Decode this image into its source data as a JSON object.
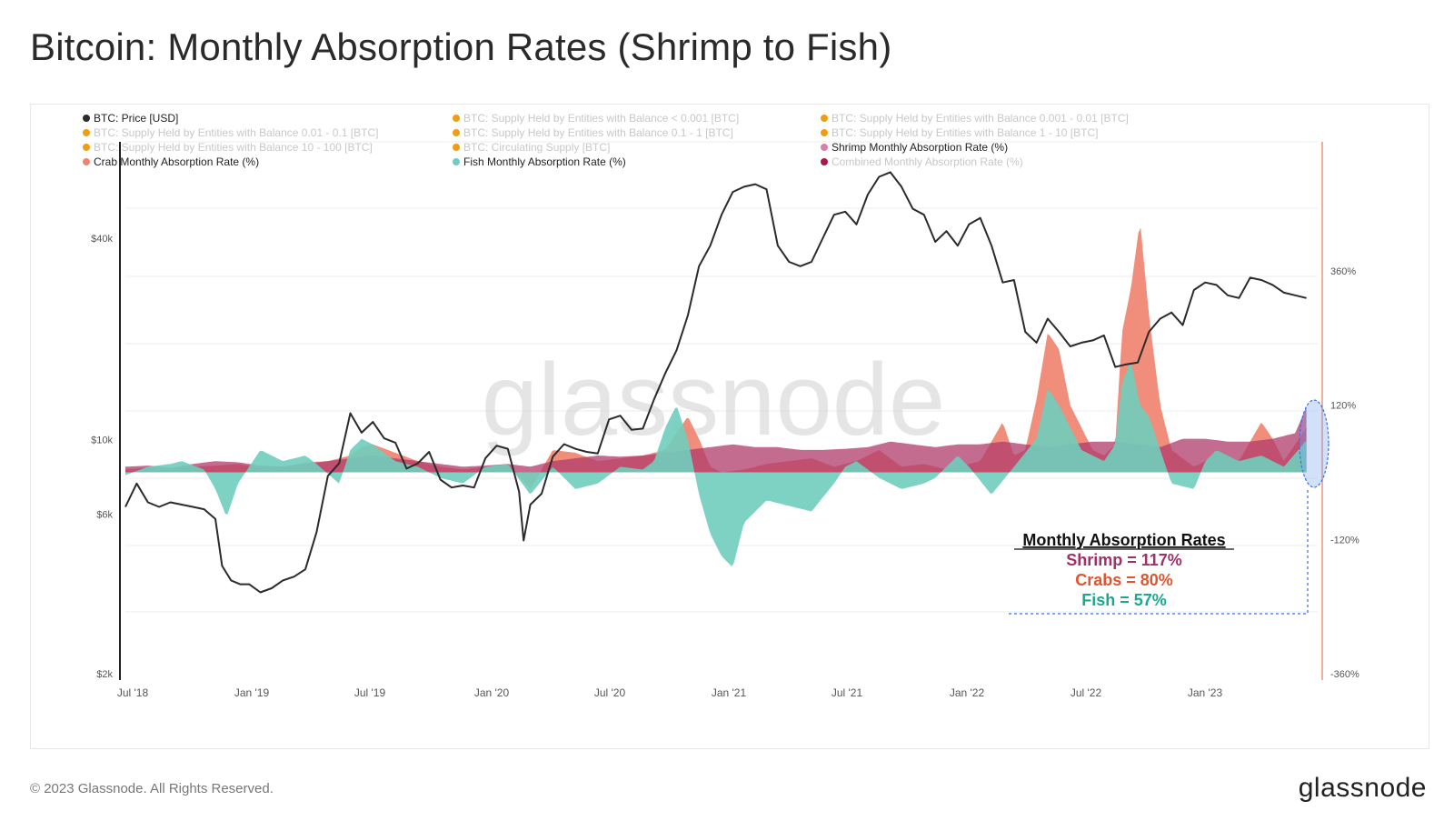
{
  "title": "Bitcoin: Monthly Absorption Rates (Shrimp to Fish)",
  "watermark": "glassnode",
  "footer": {
    "copyright": "© 2023 Glassnode. All Rights Reserved.",
    "logo": "glassnode"
  },
  "colors": {
    "price": "#2b2b2b",
    "shrimp": "#b03a6b",
    "crab": "#f08470",
    "fish": "#6fcdbd",
    "legend_orange": "#f39c12",
    "shrimp_label": "#a0306a",
    "crab_label": "#e05530",
    "fish_label": "#1aa890",
    "right_axis": "#f0907a"
  },
  "legend": [
    {
      "label": "BTC: Price [USD]",
      "color": "#2b2b2b",
      "active": true
    },
    {
      "label": "BTC: Supply Held by Entities with Balance < 0.001 [BTC]",
      "color": "#f39c12",
      "active": false
    },
    {
      "label": "BTC: Supply Held by Entities with Balance 0.001 - 0.01 [BTC]",
      "color": "#f39c12",
      "active": false
    },
    {
      "label": "BTC: Supply Held by Entities with Balance 0.01 - 0.1 [BTC]",
      "color": "#f39c12",
      "active": false
    },
    {
      "label": "BTC: Supply Held by Entities with Balance 0.1 - 1 [BTC]",
      "color": "#f39c12",
      "active": false
    },
    {
      "label": "BTC: Supply Held by Entities with Balance 1 - 10 [BTC]",
      "color": "#f39c12",
      "active": false
    },
    {
      "label": "BTC: Supply Held by Entities with Balance 10 - 100 [BTC]",
      "color": "#f39c12",
      "active": false
    },
    {
      "label": "BTC: Circulating Supply [BTC]",
      "color": "#f39c12",
      "active": false
    },
    {
      "label": "Shrimp Monthly Absorption Rate (%)",
      "color": "#d97fa8",
      "active": true
    },
    {
      "label": "Crab Monthly Absorption Rate (%)",
      "color": "#f08470",
      "active": true
    },
    {
      "label": "Fish Monthly Absorption Rate (%)",
      "color": "#6fcdbd",
      "active": true
    },
    {
      "label": "Combined Monthly Absorption Rate (%)",
      "color": "#a8174e",
      "active": false
    }
  ],
  "annotation": {
    "heading": "Monthly Absorption Rates",
    "shrimp": "Shrimp = 117%",
    "crabs": "Crabs = 80%",
    "fish": "Fish = 57%"
  },
  "chart_data": {
    "type": "area",
    "x_ticks": [
      "Jul '18",
      "Jan '19",
      "Jul '19",
      "Jan '20",
      "Jul '20",
      "Jan '21",
      "Jul '21",
      "Jan '22",
      "Jul '22",
      "Jan '23"
    ],
    "left_axis": {
      "label": "",
      "scale": "log",
      "ticks": [
        "$40k",
        "$10k",
        "$6k",
        "$2k"
      ],
      "tick_values": [
        40000,
        10000,
        6000,
        2000
      ]
    },
    "right_axis": {
      "label": "",
      "ticks": [
        "360%",
        "120%",
        "-120%",
        "-360%"
      ],
      "tick_values": [
        360,
        120,
        -120,
        -360
      ],
      "ylim": [
        -360,
        360
      ]
    },
    "x_range": [
      2018.45,
      2023.75
    ],
    "price_series": {
      "name": "BTC: Price [USD]",
      "x": [
        2018.45,
        2018.5,
        2018.55,
        2018.6,
        2018.65,
        2018.7,
        2018.75,
        2018.8,
        2018.85,
        2018.88,
        2018.92,
        2018.96,
        2019.0,
        2019.05,
        2019.1,
        2019.15,
        2019.2,
        2019.25,
        2019.3,
        2019.35,
        2019.4,
        2019.45,
        2019.5,
        2019.55,
        2019.6,
        2019.65,
        2019.7,
        2019.75,
        2019.8,
        2019.85,
        2019.9,
        2019.95,
        2020.0,
        2020.05,
        2020.1,
        2020.15,
        2020.2,
        2020.22,
        2020.25,
        2020.3,
        2020.35,
        2020.4,
        2020.45,
        2020.5,
        2020.55,
        2020.6,
        2020.65,
        2020.7,
        2020.75,
        2020.8,
        2020.85,
        2020.9,
        2020.95,
        2021.0,
        2021.05,
        2021.1,
        2021.15,
        2021.2,
        2021.25,
        2021.3,
        2021.35,
        2021.4,
        2021.45,
        2021.5,
        2021.55,
        2021.6,
        2021.65,
        2021.7,
        2021.75,
        2021.8,
        2021.85,
        2021.9,
        2021.95,
        2022.0,
        2022.05,
        2022.1,
        2022.15,
        2022.2,
        2022.25,
        2022.3,
        2022.35,
        2022.4,
        2022.45,
        2022.5,
        2022.55,
        2022.6,
        2022.65,
        2022.7,
        2022.75,
        2022.8,
        2022.85,
        2022.9,
        2022.95,
        2023.0,
        2023.05,
        2023.1,
        2023.15,
        2023.2,
        2023.25,
        2023.3,
        2023.35,
        2023.4,
        2023.45,
        2023.5,
        2023.55,
        2023.6,
        2023.65,
        2023.7
      ],
      "values": [
        6300,
        7400,
        6500,
        6300,
        6500,
        6400,
        6300,
        6200,
        5800,
        4200,
        3800,
        3700,
        3700,
        3500,
        3600,
        3800,
        3900,
        4100,
        5300,
        7800,
        8500,
        12000,
        10500,
        11300,
        10100,
        9800,
        8200,
        8500,
        9200,
        7600,
        7200,
        7300,
        7200,
        8800,
        9600,
        9400,
        7000,
        5000,
        6400,
        6900,
        8900,
        9700,
        9400,
        9200,
        9100,
        11500,
        11800,
        10700,
        10800,
        13200,
        15800,
        18500,
        23500,
        33000,
        38000,
        47000,
        55000,
        57000,
        58000,
        56000,
        38000,
        34000,
        33000,
        34000,
        40000,
        47000,
        48000,
        44000,
        54000,
        61000,
        63000,
        57000,
        49000,
        47000,
        39000,
        42000,
        38000,
        44000,
        46000,
        38000,
        29500,
        30000,
        21000,
        19500,
        23000,
        21000,
        19000,
        19500,
        19800,
        20500,
        16500,
        16800,
        17000,
        21000,
        23000,
        24000,
        22000,
        28000,
        29500,
        29000,
        27000,
        26500,
        30500,
        30000,
        29000,
        27500,
        27000,
        26500
      ]
    },
    "series": [
      {
        "name": "Crab Monthly Absorption Rate (%)",
        "x": [
          2018.45,
          2018.55,
          2018.65,
          2018.75,
          2018.85,
          2018.95,
          2019.05,
          2019.15,
          2019.25,
          2019.35,
          2019.45,
          2019.5,
          2019.55,
          2019.65,
          2019.75,
          2019.85,
          2019.95,
          2020.05,
          2020.15,
          2020.25,
          2020.35,
          2020.45,
          2020.55,
          2020.65,
          2020.75,
          2020.85,
          2020.95,
          2021.0,
          2021.05,
          2021.1,
          2021.2,
          2021.3,
          2021.4,
          2021.5,
          2021.6,
          2021.7,
          2021.8,
          2021.9,
          2022.0,
          2022.1,
          2022.15,
          2022.25,
          2022.35,
          2022.4,
          2022.45,
          2022.5,
          2022.55,
          2022.6,
          2022.65,
          2022.75,
          2022.8,
          2022.85,
          2022.88,
          2022.92,
          2022.96,
          2023.0,
          2023.05,
          2023.1,
          2023.2,
          2023.25,
          2023.3,
          2023.4,
          2023.5,
          2023.55,
          2023.6,
          2023.65,
          2023.7
        ],
        "values": [
          5,
          8,
          2,
          10,
          12,
          15,
          8,
          10,
          18,
          20,
          30,
          45,
          50,
          35,
          20,
          10,
          5,
          10,
          15,
          -30,
          40,
          35,
          20,
          25,
          30,
          40,
          100,
          60,
          10,
          0,
          5,
          15,
          20,
          25,
          10,
          20,
          40,
          10,
          15,
          5,
          10,
          20,
          90,
          30,
          40,
          130,
          250,
          220,
          120,
          40,
          30,
          50,
          250,
          330,
          450,
          280,
          120,
          40,
          10,
          20,
          40,
          20,
          90,
          60,
          20,
          50,
          80
        ]
      },
      {
        "name": "Fish Monthly Absorption Rate (%)",
        "x": [
          2018.45,
          2018.55,
          2018.65,
          2018.7,
          2018.8,
          2018.85,
          2018.9,
          2018.95,
          2019.05,
          2019.15,
          2019.25,
          2019.3,
          2019.4,
          2019.45,
          2019.5,
          2019.55,
          2019.65,
          2019.75,
          2019.85,
          2019.95,
          2020.05,
          2020.15,
          2020.25,
          2020.35,
          2020.45,
          2020.55,
          2020.65,
          2020.75,
          2020.8,
          2020.85,
          2020.9,
          2020.95,
          2021.0,
          2021.05,
          2021.1,
          2021.15,
          2021.2,
          2021.3,
          2021.4,
          2021.5,
          2021.6,
          2021.65,
          2021.7,
          2021.8,
          2021.9,
          2022.0,
          2022.05,
          2022.1,
          2022.15,
          2022.2,
          2022.3,
          2022.4,
          2022.5,
          2022.55,
          2022.6,
          2022.7,
          2022.8,
          2022.85,
          2022.88,
          2022.92,
          2022.96,
          2023.0,
          2023.05,
          2023.1,
          2023.2,
          2023.25,
          2023.3,
          2023.4,
          2023.5,
          2023.6,
          2023.7
        ],
        "values": [
          -5,
          10,
          15,
          20,
          5,
          -30,
          -80,
          -20,
          40,
          20,
          30,
          15,
          -20,
          40,
          60,
          50,
          20,
          10,
          -10,
          -20,
          10,
          15,
          -40,
          10,
          -30,
          -20,
          10,
          5,
          20,
          80,
          120,
          60,
          -40,
          -110,
          -150,
          -170,
          -90,
          -50,
          -60,
          -70,
          -20,
          10,
          20,
          -10,
          -30,
          -20,
          -10,
          10,
          30,
          10,
          -40,
          10,
          60,
          150,
          120,
          40,
          20,
          50,
          160,
          200,
          120,
          100,
          40,
          -20,
          -30,
          20,
          40,
          20,
          30,
          10,
          57
        ]
      },
      {
        "name": "Shrimp Monthly Absorption Rate (%)",
        "x": [
          2018.45,
          2018.55,
          2018.65,
          2018.75,
          2018.85,
          2018.95,
          2019.05,
          2019.15,
          2019.25,
          2019.35,
          2019.45,
          2019.55,
          2019.65,
          2019.75,
          2019.85,
          2019.95,
          2020.05,
          2020.15,
          2020.25,
          2020.35,
          2020.45,
          2020.55,
          2020.65,
          2020.75,
          2020.85,
          2020.95,
          2021.05,
          2021.15,
          2021.25,
          2021.35,
          2021.45,
          2021.55,
          2021.65,
          2021.75,
          2021.85,
          2021.95,
          2022.05,
          2022.15,
          2022.25,
          2022.35,
          2022.45,
          2022.55,
          2022.65,
          2022.75,
          2022.85,
          2022.95,
          2023.05,
          2023.15,
          2023.25,
          2023.35,
          2023.45,
          2023.55,
          2023.65,
          2023.7
        ],
        "values": [
          10,
          12,
          8,
          15,
          20,
          18,
          12,
          10,
          15,
          20,
          25,
          30,
          25,
          20,
          15,
          10,
          12,
          15,
          10,
          20,
          25,
          30,
          28,
          30,
          35,
          40,
          45,
          50,
          45,
          45,
          40,
          40,
          42,
          45,
          55,
          50,
          45,
          50,
          50,
          55,
          50,
          45,
          50,
          55,
          55,
          50,
          45,
          60,
          60,
          55,
          55,
          60,
          70,
          117
        ]
      }
    ]
  }
}
